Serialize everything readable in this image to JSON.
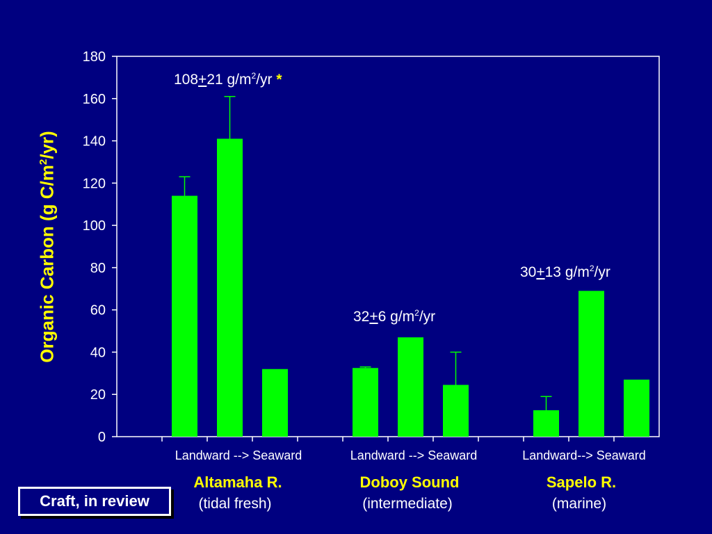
{
  "chart_data": {
    "type": "bar",
    "ylabel_main": "Organic Carbon (g C/m",
    "ylabel_sup": "2",
    "ylabel_end": "/yr)",
    "ylim": [
      0,
      180
    ],
    "yticks": [
      0,
      20,
      40,
      60,
      80,
      100,
      120,
      140,
      160,
      180
    ],
    "grid": false,
    "bar_color": "#00ff00",
    "groups": [
      {
        "tick_label": "Landward --> Seaward",
        "site": "Altamaha R.",
        "type_label": "(tidal fresh)",
        "annotation": {
          "pre": "108",
          "pm": "+",
          "post": "21 g/m",
          "sup": "2",
          "end": "/yr",
          "star": "*"
        },
        "bars": [
          {
            "value": 114,
            "error_upper": 123
          },
          {
            "value": 141,
            "error_upper": 161
          },
          {
            "value": 32,
            "error_upper": null
          }
        ]
      },
      {
        "tick_label": "Landward --> Seaward",
        "site": "Doboy Sound",
        "type_label": "(intermediate)",
        "annotation": {
          "pre": "32",
          "pm": "+",
          "post": "6 g/m",
          "sup": "2",
          "end": "/yr",
          "star": ""
        },
        "bars": [
          {
            "value": 32.5,
            "error_upper": 33
          },
          {
            "value": 47,
            "error_upper": null
          },
          {
            "value": 24.5,
            "error_upper": 40
          }
        ]
      },
      {
        "tick_label": "Landward--> Seaward",
        "site": "Sapelo R.",
        "type_label": "(marine)",
        "annotation": {
          "pre": "30",
          "pm": "+",
          "post": "13 g/m",
          "sup": "2",
          "end": "/yr",
          "star": ""
        },
        "bars": [
          {
            "value": 12.5,
            "error_upper": 19
          },
          {
            "value": 69,
            "error_upper": null
          },
          {
            "value": 27,
            "error_upper": null
          }
        ]
      }
    ]
  },
  "note": "Craft, in review"
}
